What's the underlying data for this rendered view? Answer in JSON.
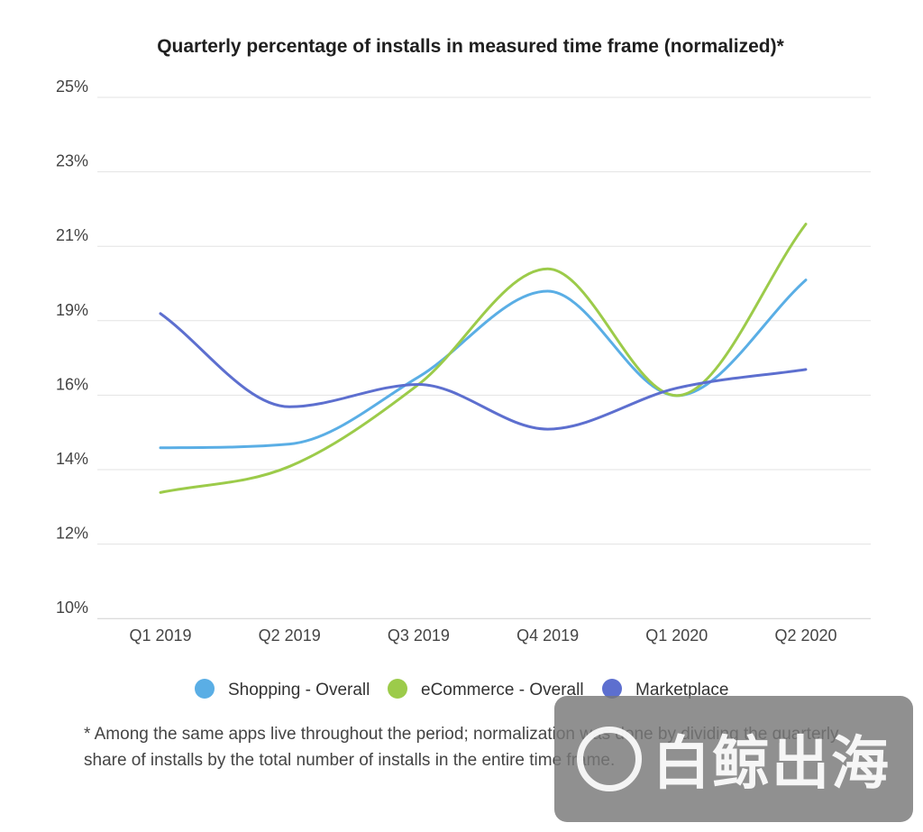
{
  "chart_data": {
    "type": "line",
    "title": "Quarterly percentage of installs in measured time frame (normalized)*",
    "categories": [
      "Q1 2019",
      "Q2 2019",
      "Q3 2019",
      "Q4 2019",
      "Q1 2020",
      "Q2 2020"
    ],
    "y_tick_labels": [
      "25%",
      "23%",
      "21%",
      "19%",
      "16%",
      "14%",
      "12%",
      "10%"
    ],
    "ylim": [
      10,
      24
    ],
    "grid": true,
    "legend_position": "bottom-center",
    "series": [
      {
        "name": "Shopping - Overall",
        "color": "#5aaee5",
        "values": [
          14.6,
          14.7,
          16.5,
          18.8,
          16.0,
          19.1
        ]
      },
      {
        "name": "eCommerce - Overall",
        "color": "#9ccb4a",
        "values": [
          13.4,
          14.1,
          16.3,
          19.4,
          16.0,
          20.6
        ]
      },
      {
        "name": "Marketplace",
        "color": "#5d6fcf",
        "values": [
          18.2,
          15.7,
          16.3,
          15.1,
          16.2,
          16.7
        ]
      }
    ]
  },
  "footnote": "* Among the same apps live throughout the period; normalization was done by dividing the quarterly share of installs by the total number of installs in the entire time frame.",
  "watermark": {
    "text": "白鲸出海"
  }
}
